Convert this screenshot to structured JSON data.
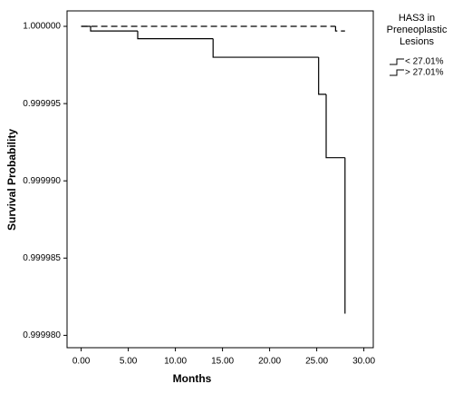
{
  "chart_data": {
    "type": "step",
    "x_label": "Months",
    "y_label": "Survival Probability",
    "legend_title": "HAS3 in Preneoplastic Lesions",
    "legend": "right",
    "xlim": [
      -1.5,
      31
    ],
    "ylim": [
      0.9999792,
      1.000001
    ],
    "xticks": [
      {
        "value": 0,
        "label": "0.00"
      },
      {
        "value": 5,
        "label": "5.00"
      },
      {
        "value": 10,
        "label": "10.00"
      },
      {
        "value": 15,
        "label": "15.00"
      },
      {
        "value": 20,
        "label": "20.00"
      },
      {
        "value": 25,
        "label": "25.00"
      },
      {
        "value": 30,
        "label": "30.00"
      }
    ],
    "yticks": [
      {
        "value": 0.99998,
        "label": "0.999980"
      },
      {
        "value": 0.999985,
        "label": "0.999985"
      },
      {
        "value": 0.99999,
        "label": "0.999990"
      },
      {
        "value": 0.999995,
        "label": "0.999995"
      },
      {
        "value": 1,
        "label": "1.000000"
      }
    ],
    "series": [
      {
        "name": "< 27.01%",
        "color": "#000000",
        "dash": true,
        "x": [
          0,
          27,
          28
        ],
        "values": [
          1,
          0.9999997,
          0.9999997
        ]
      },
      {
        "name": "> 27.01%",
        "color": "#000000",
        "dash": false,
        "x": [
          0,
          1,
          6,
          14,
          25.2,
          26,
          28
        ],
        "values": [
          1,
          0.9999997,
          0.9999992,
          0.999998,
          0.9999956,
          0.9999915,
          0.9999814
        ]
      }
    ]
  }
}
